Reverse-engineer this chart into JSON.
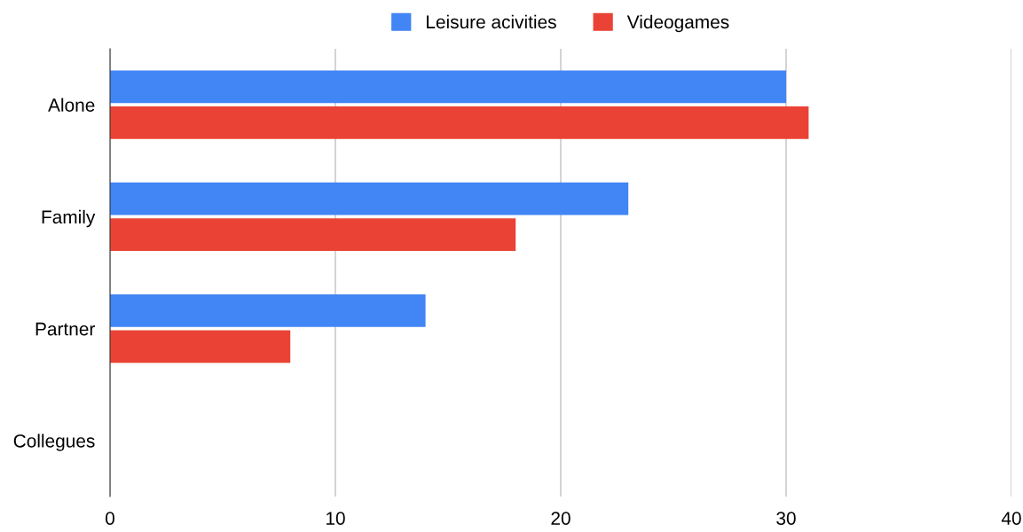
{
  "chart_data": {
    "type": "bar",
    "orientation": "horizontal",
    "categories": [
      "Alone",
      "Family",
      "Partner",
      "Collegues"
    ],
    "series": [
      {
        "name": "Leisure acivities",
        "color": "#4285f4",
        "values": [
          30,
          23,
          14,
          0
        ]
      },
      {
        "name": "Videogames",
        "color": "#ea4335",
        "values": [
          31,
          18,
          8,
          0
        ]
      }
    ],
    "xlim": [
      0,
      40
    ],
    "xticks": [
      0,
      10,
      20,
      30,
      40
    ],
    "grid": "x",
    "legend": "top"
  }
}
